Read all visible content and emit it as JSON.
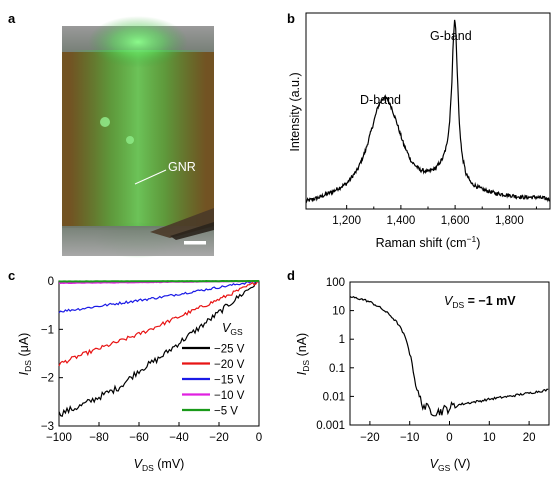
{
  "panels": {
    "a": {
      "label": "a",
      "annotation": "GNR"
    },
    "b": {
      "label": "b",
      "annotations": [
        "D-band",
        "G-band"
      ]
    },
    "c": {
      "label": "c",
      "legend_title": "V_GS",
      "legend_title_main": "V",
      "legend_title_sub": "GS"
    },
    "d": {
      "label": "d",
      "annotation_main": "V",
      "annotation_sub": "DS",
      "annotation_value": " = −1 mV"
    }
  },
  "chart_data": [
    {
      "panel": "b",
      "type": "line",
      "title": "",
      "xlabel": "Raman shift (cm−1)",
      "xlabel_main": "Raman shift (cm",
      "xlabel_sup": "−1",
      "xlabel_end": ")",
      "ylabel": "Intensity (a.u.)",
      "xlim": [
        1050,
        1950
      ],
      "xticks": [
        1200,
        1400,
        1600,
        1800
      ],
      "xtick_labels": [
        "1,200",
        "1,400",
        "1,600",
        "1,800"
      ],
      "yticks": [],
      "grid": false,
      "series": [
        {
          "color": "#000000",
          "x": [
            1050,
            1100,
            1150,
            1200,
            1240,
            1270,
            1295,
            1315,
            1330,
            1340,
            1350,
            1365,
            1385,
            1410,
            1440,
            1470,
            1500,
            1530,
            1555,
            1570,
            1580,
            1588,
            1594,
            1598,
            1602,
            1608,
            1615,
            1625,
            1640,
            1660,
            1700,
            1750,
            1800,
            1850,
            1900,
            1950
          ],
          "y": [
            0.04,
            0.06,
            0.09,
            0.13,
            0.2,
            0.3,
            0.42,
            0.52,
            0.56,
            0.57,
            0.56,
            0.52,
            0.44,
            0.33,
            0.24,
            0.2,
            0.19,
            0.21,
            0.26,
            0.33,
            0.45,
            0.65,
            0.88,
            0.97,
            0.92,
            0.7,
            0.45,
            0.28,
            0.18,
            0.13,
            0.1,
            0.08,
            0.07,
            0.06,
            0.06,
            0.05
          ]
        }
      ]
    },
    {
      "panel": "c",
      "type": "line",
      "title": "",
      "xlabel": "V_DS (mV)",
      "xlabel_main": "V",
      "xlabel_sub": "DS",
      "xlabel_unit": " (mV)",
      "ylabel": "I_DS (μA)",
      "ylabel_main": "I",
      "ylabel_sub": "DS",
      "ylabel_unit": " (μA)",
      "xlim": [
        -100,
        0
      ],
      "ylim": [
        -3,
        0
      ],
      "xticks": [
        -100,
        -80,
        -60,
        -40,
        -20,
        0
      ],
      "yticks": [
        0,
        -1,
        -2,
        -3
      ],
      "xtick_labels": [
        "−100",
        "−80",
        "−60",
        "−40",
        "−20",
        "0"
      ],
      "ytick_labels": [
        "0",
        "−1",
        "−2",
        "−3"
      ],
      "legend_position": "lower-right",
      "series": [
        {
          "name": "−25 V",
          "color": "#000000",
          "x": [
            -100,
            -90,
            -80,
            -70,
            -60,
            -50,
            -40,
            -30,
            -20,
            -10,
            0
          ],
          "y": [
            -2.75,
            -2.6,
            -2.4,
            -2.2,
            -1.85,
            -1.6,
            -1.28,
            -0.97,
            -0.65,
            -0.32,
            0.0
          ]
        },
        {
          "name": "−20 V",
          "color": "#e81414",
          "x": [
            -100,
            -90,
            -80,
            -70,
            -60,
            -50,
            -40,
            -30,
            -20,
            -10,
            0
          ],
          "y": [
            -1.72,
            -1.55,
            -1.4,
            -1.25,
            -1.1,
            -0.92,
            -0.74,
            -0.56,
            -0.38,
            -0.19,
            0.0
          ]
        },
        {
          "name": "−15 V",
          "color": "#1a1ae6",
          "x": [
            -100,
            -90,
            -80,
            -70,
            -60,
            -50,
            -40,
            -30,
            -20,
            -10,
            0
          ],
          "y": [
            -0.63,
            -0.58,
            -0.52,
            -0.46,
            -0.4,
            -0.34,
            -0.27,
            -0.2,
            -0.13,
            -0.06,
            0.0
          ]
        },
        {
          "name": "−10 V",
          "color": "#e020e0",
          "x": [
            -100,
            -50,
            0
          ],
          "y": [
            -0.04,
            -0.02,
            0.0
          ]
        },
        {
          "name": "−5 V",
          "color": "#1a9a1a",
          "x": [
            -100,
            -50,
            0
          ],
          "y": [
            -0.01,
            -0.005,
            0.0
          ]
        }
      ]
    },
    {
      "panel": "d",
      "type": "line",
      "title": "",
      "xlabel": "V_GS (V)",
      "xlabel_main": "V",
      "xlabel_sub": "GS",
      "xlabel_unit": " (V)",
      "ylabel": "I_DS (nA)",
      "ylabel_main": "I",
      "ylabel_sub": "DS",
      "ylabel_unit": " (nA)",
      "yscale": "log",
      "xlim": [
        -25,
        25
      ],
      "ylim": [
        0.001,
        100
      ],
      "xticks": [
        -20,
        -10,
        0,
        10,
        20
      ],
      "yticks": [
        100,
        10,
        1,
        0.1,
        0.01,
        0.001
      ],
      "xtick_labels": [
        "−20",
        "−10",
        "0",
        "10",
        "20"
      ],
      "ytick_labels": [
        "100",
        "10",
        "1",
        "0.1",
        "0.01",
        "0.001"
      ],
      "series": [
        {
          "color": "#000000",
          "x": [
            -25,
            -22,
            -20,
            -18,
            -16,
            -14,
            -12,
            -11,
            -10,
            -9,
            -8,
            -7,
            -6,
            -5,
            -4,
            -3,
            -2,
            -1,
            0,
            2,
            5,
            8,
            10,
            15,
            20,
            25
          ],
          "y": [
            30,
            25,
            20,
            14,
            9,
            5,
            2,
            1,
            0.3,
            0.05,
            0.012,
            0.006,
            0.004,
            0.0035,
            0.003,
            0.0028,
            0.0032,
            0.0035,
            0.004,
            0.005,
            0.006,
            0.007,
            0.008,
            0.01,
            0.013,
            0.017
          ]
        }
      ]
    }
  ]
}
